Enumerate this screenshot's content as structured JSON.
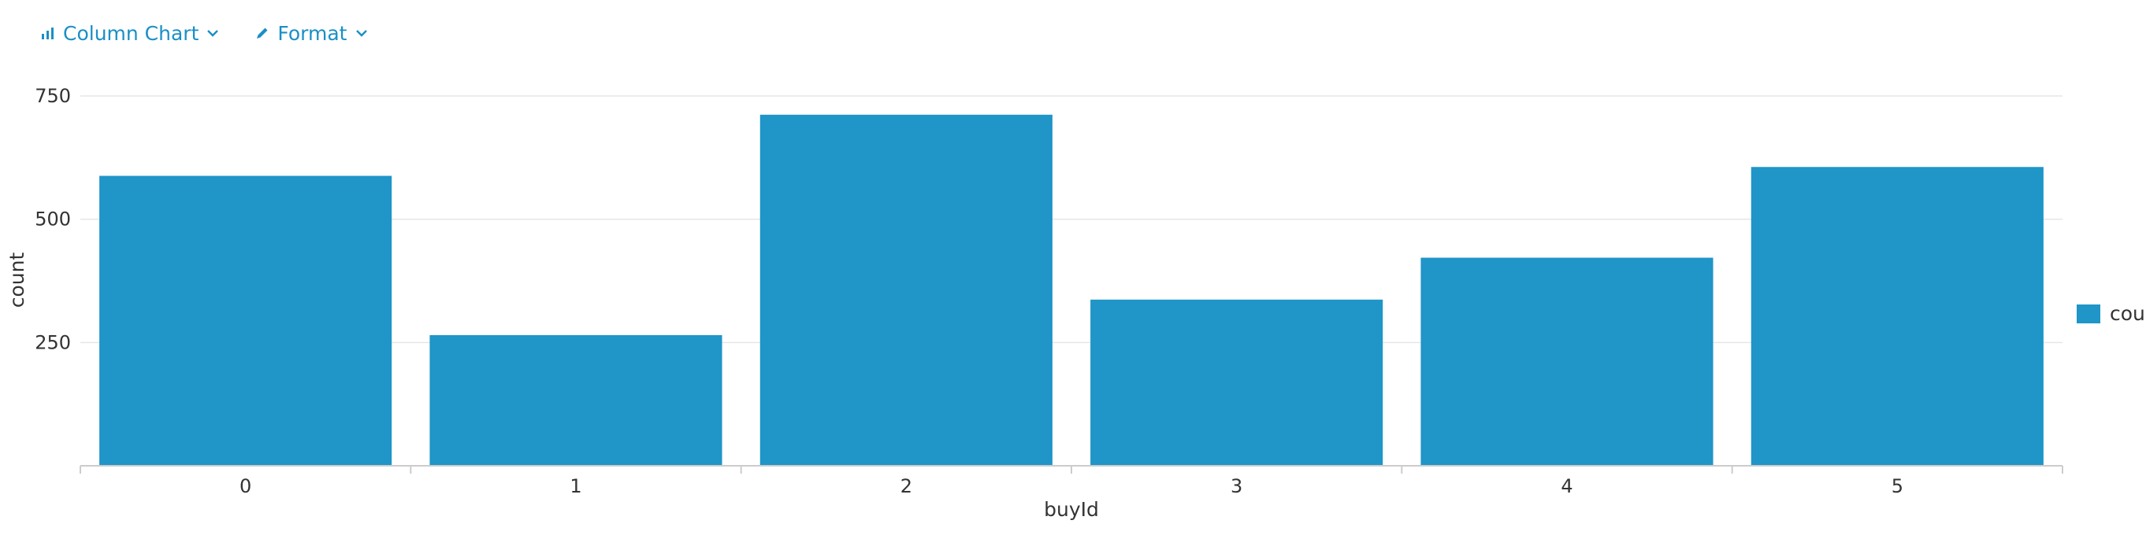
{
  "toolbar": {
    "chart_type_label": "Column Chart",
    "format_label": "Format"
  },
  "colors": {
    "accent": "#1a8fc6",
    "bar": "#1f95c8",
    "grid": "#e6e6e6",
    "axis": "#cccccc"
  },
  "legend": {
    "label": "cou"
  },
  "chart_data": {
    "type": "bar",
    "categories": [
      "0",
      "1",
      "2",
      "3",
      "4",
      "5"
    ],
    "series": [
      {
        "name": "count",
        "values": [
          588,
          265,
          712,
          337,
          422,
          606
        ]
      }
    ],
    "xlabel": "buyId",
    "ylabel": "count",
    "ylim": [
      0,
      750
    ],
    "yticks": [
      250,
      500,
      750
    ],
    "grid": true,
    "legend_position": "right"
  }
}
